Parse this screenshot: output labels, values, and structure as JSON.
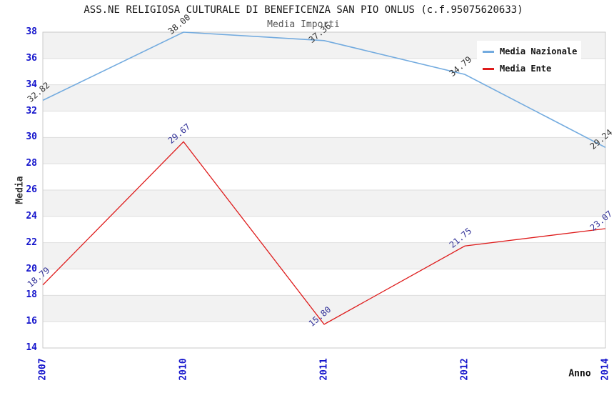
{
  "chart_data": {
    "type": "line",
    "title": "ASS.NE RELIGIOSA CULTURALE DI BENEFICENZA SAN PIO ONLUS (c.f.95075620633)",
    "subtitle": "Media Importi",
    "xlabel": "Anno",
    "ylabel": "Media",
    "categories": [
      "2007",
      "2010",
      "2011",
      "2012",
      "2014"
    ],
    "series": [
      {
        "name": "Media Nazionale",
        "color": "#73ABDF",
        "label_color": "#333333",
        "values": [
          32.82,
          38.0,
          37.36,
          34.79,
          29.24
        ]
      },
      {
        "name": "Media Ente",
        "color": "#DE1B1B",
        "label_color": "#333399",
        "values": [
          18.79,
          29.67,
          15.8,
          21.75,
          23.07
        ]
      }
    ],
    "ylim": [
      14,
      38
    ],
    "ytick_step": 2,
    "grid": "horizontal-only",
    "legend_position": "top-right"
  },
  "style": {
    "tick_color": "#1515CC",
    "band_color": "#F2F2F2",
    "grid_color": "#DEDEDE",
    "border_color": "#C9C9C9",
    "background": "#FFFFFF"
  }
}
